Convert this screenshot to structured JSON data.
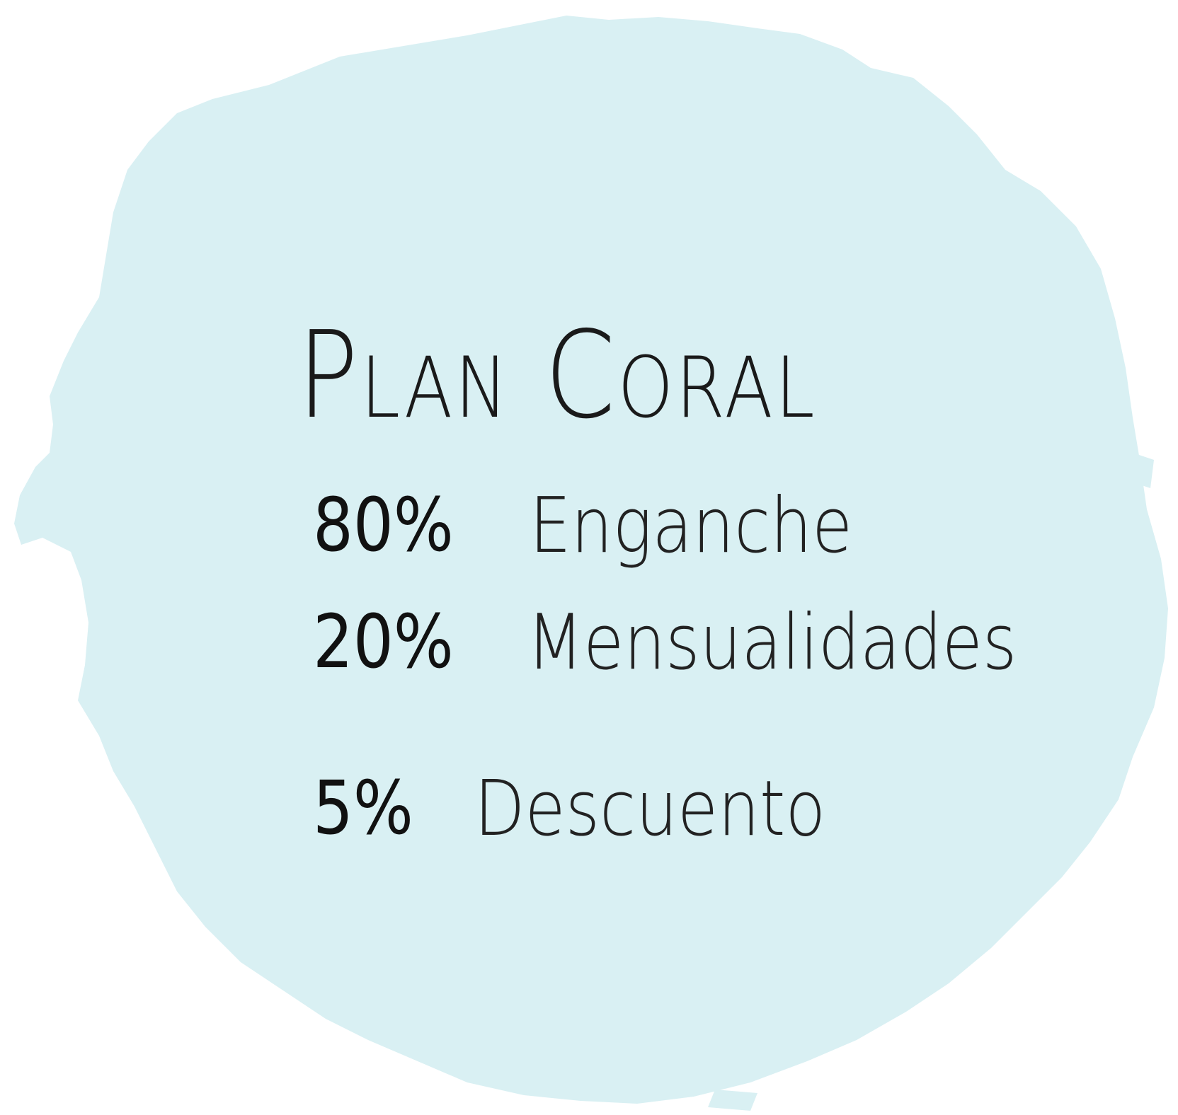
{
  "colors": {
    "blob_fill": "#d9f0f3",
    "background": "#ffffff",
    "text": "#1a1a1a"
  },
  "title": "Plan Coral",
  "items": [
    {
      "percent": "80%",
      "label": "Enganche"
    },
    {
      "percent": "20%",
      "label": "Mensualidades"
    },
    {
      "percent": "5%",
      "label": "Descuento"
    }
  ]
}
